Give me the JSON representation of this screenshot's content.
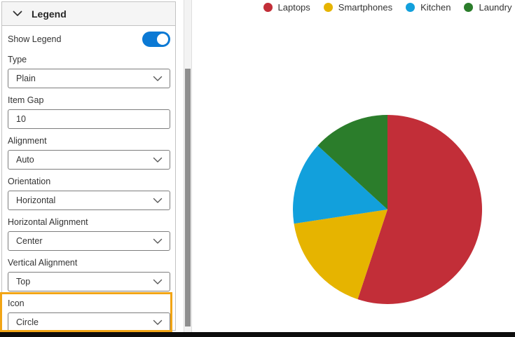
{
  "ui_colors": {
    "toggle_on": "#0b79d4",
    "highlight_border": "#F2A515",
    "header_bg": "#f5f5f5",
    "panel_border": "#c3c3c3",
    "control_border": "#7d7d7d",
    "text": "#333333"
  },
  "legend_panel": {
    "title": "Legend",
    "collapse_icon": "chevron-down-icon",
    "show_legend": {
      "label": "Show Legend",
      "state": "on"
    },
    "type": {
      "label": "Type",
      "value": "Plain"
    },
    "item_gap": {
      "label": "Item Gap",
      "value": "10"
    },
    "alignment": {
      "label": "Alignment",
      "value": "Auto"
    },
    "orientation": {
      "label": "Orientation",
      "value": "Horizontal"
    },
    "horizontal_alignment": {
      "label": "Horizontal Alignment",
      "value": "Center"
    },
    "vertical_alignment": {
      "label": "Vertical Alignment",
      "value": "Top"
    },
    "icon_field": {
      "label": "Icon",
      "value": "Circle",
      "highlighted": true
    }
  },
  "chart_data": {
    "type": "pie",
    "title": "",
    "legend_position": "top",
    "legend_icon": "circle",
    "start_angle_deg": 0,
    "direction": "clockwise",
    "series": [
      {
        "name": "Laptops",
        "percent": 55.1,
        "color": "#C22E38"
      },
      {
        "name": "Smartphones",
        "percent": 17.5,
        "color": "#E6B400"
      },
      {
        "name": "Kitchen",
        "percent": 14.2,
        "color": "#12A0DC"
      },
      {
        "name": "Laundry",
        "percent": 13.2,
        "color": "#2B7D2B"
      }
    ]
  }
}
